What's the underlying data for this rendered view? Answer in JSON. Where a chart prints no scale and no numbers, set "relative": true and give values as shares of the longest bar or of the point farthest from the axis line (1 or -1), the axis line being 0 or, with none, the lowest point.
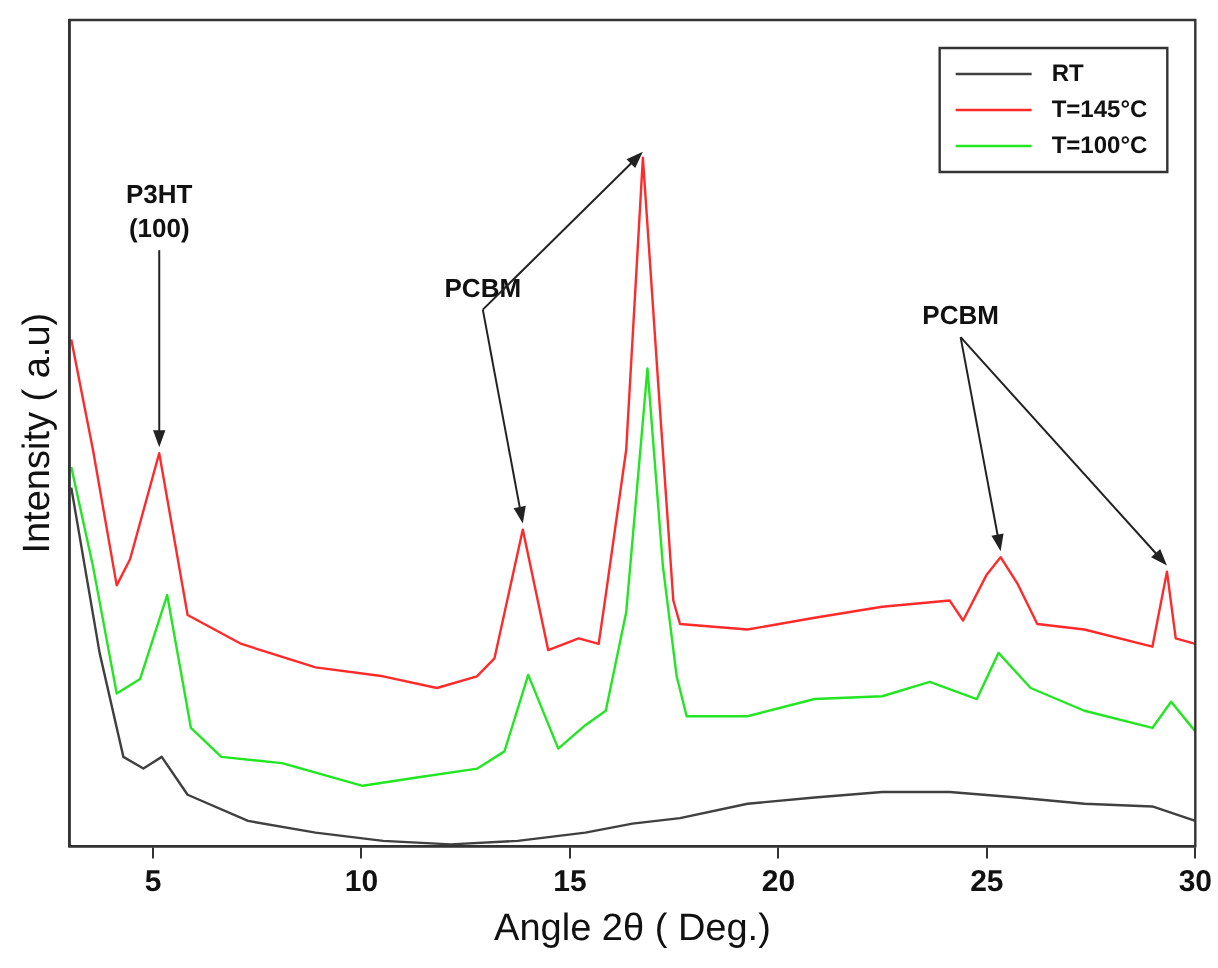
{
  "chart_data": {
    "type": "line",
    "relative": true,
    "xlabel": "Angle 2θ ( Deg.)",
    "ylabel": "Intensity ( a.u)",
    "xlim": [
      3,
      30
    ],
    "xticks": [
      5,
      10,
      15,
      20,
      25,
      30
    ],
    "grid": false,
    "legend": "top right",
    "marker": "none",
    "line_style": "solid",
    "annotations": [
      "P3HT\n(100)",
      "PCBM",
      "PCBM"
    ],
    "series": [
      {
        "name": "RT",
        "color": "#404040",
        "x": [
          3.04,
          3.72,
          4.29,
          4.77,
          5.21,
          5.83,
          7.28,
          8.9,
          10.52,
          12.14,
          13.75,
          15.37,
          16.5,
          17.64,
          19.26,
          20.87,
          22.49,
          24.11,
          25.73,
          27.34,
          28.97,
          30
        ],
        "values": [
          0.521,
          0.281,
          0.13,
          0.113,
          0.13,
          0.075,
          0.037,
          0.02,
          0.008,
          0.003,
          0.008,
          0.02,
          0.033,
          0.041,
          0.062,
          0.071,
          0.079,
          0.079,
          0.071,
          0.062,
          0.058,
          0.037
        ]
      },
      {
        "name": "T=145°C",
        "color": "#ff2a2a",
        "x": [
          3.04,
          3.56,
          4.13,
          4.45,
          5.15,
          5.83,
          7.12,
          8.9,
          10.52,
          11.81,
          12.77,
          13.19,
          13.87,
          14.48,
          15.21,
          15.69,
          15.86,
          16.35,
          16.75,
          17.15,
          17.48,
          17.64,
          19.26,
          20.87,
          22.49,
          24.11,
          24.43,
          25.0,
          25.33,
          25.73,
          26.21,
          27.34,
          28.97,
          29.32,
          29.53,
          30
        ],
        "values": [
          0.736,
          0.576,
          0.379,
          0.417,
          0.571,
          0.336,
          0.294,
          0.26,
          0.247,
          0.23,
          0.247,
          0.273,
          0.46,
          0.285,
          0.302,
          0.294,
          0.365,
          0.576,
          1.0,
          0.643,
          0.357,
          0.323,
          0.315,
          0.332,
          0.348,
          0.357,
          0.328,
          0.395,
          0.42,
          0.382,
          0.323,
          0.315,
          0.29,
          0.399,
          0.302,
          0.294
        ]
      },
      {
        "name": "T=100°C",
        "color": "#22e622",
        "x": [
          3.04,
          3.56,
          4.13,
          4.69,
          5.34,
          5.91,
          6.64,
          8.09,
          10.03,
          11.33,
          12.78,
          13.43,
          14.0,
          14.72,
          15.37,
          15.86,
          16.35,
          16.86,
          17.23,
          17.56,
          17.8,
          19.26,
          20.87,
          22.49,
          23.63,
          24.76,
          25.28,
          26.05,
          27.34,
          28.97,
          29.42,
          30
        ],
        "values": [
          0.551,
          0.407,
          0.222,
          0.243,
          0.365,
          0.172,
          0.13,
          0.121,
          0.088,
          0.1,
          0.113,
          0.138,
          0.249,
          0.142,
          0.176,
          0.197,
          0.34,
          0.694,
          0.407,
          0.247,
          0.189,
          0.189,
          0.214,
          0.218,
          0.239,
          0.214,
          0.281,
          0.23,
          0.197,
          0.172,
          0.21,
          0.167
        ]
      }
    ]
  }
}
